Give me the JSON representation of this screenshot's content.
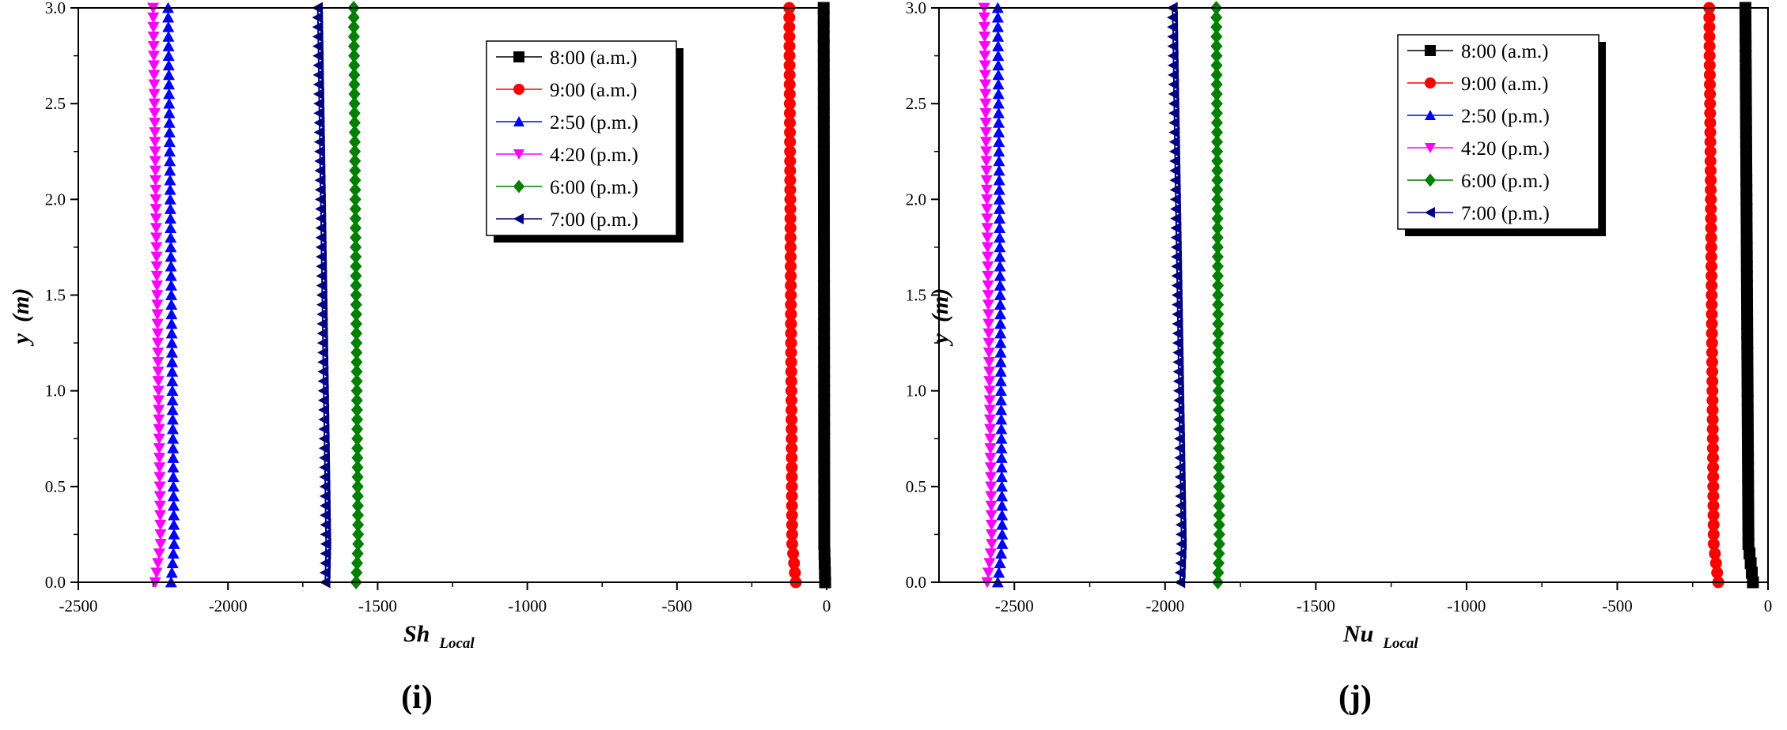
{
  "figure": {
    "panels": [
      {
        "panel_label": "(i)",
        "x_title_main": "Sh",
        "x_title_sub": "Local",
        "y_title_main": "y",
        "y_title_unit": "(m)"
      },
      {
        "panel_label": "(j)",
        "x_title_main": "Nu",
        "x_title_sub": "Local",
        "y_title_main": "y",
        "y_title_unit": "(m)"
      }
    ]
  },
  "chart_data": [
    {
      "type": "line",
      "title": "(i)",
      "xlabel": "Sh Local",
      "ylabel": "y (m)",
      "xlim": [
        -2500,
        0
      ],
      "ylim": [
        0,
        3.0
      ],
      "x_ticks": [
        -2500,
        -2000,
        -1500,
        -1000,
        -500,
        0
      ],
      "x_tick_labels": [
        "-2500",
        "-2000",
        "-1500",
        "-1000",
        "-500",
        "0"
      ],
      "y_ticks": [
        0,
        0.5,
        1.0,
        1.5,
        2.0,
        2.5,
        3.0
      ],
      "y_tick_labels": [
        "0.0",
        "0.5",
        "1.0",
        "1.5",
        "2.0",
        "2.5",
        "3.0"
      ],
      "legend_position": "top-right",
      "series": [
        {
          "name": "8:00 (a.m.)",
          "color": "#000000",
          "marker": "square",
          "x_at_bottom": -5,
          "x_near_bottom": -8,
          "x_at_top": -10
        },
        {
          "name": "9:00 (a.m.)",
          "color": "#ff0000",
          "marker": "circle",
          "x_at_bottom": -103,
          "x_near_bottom": -115,
          "x_at_top": -125
        },
        {
          "name": "2:50 (p.m.)",
          "color": "#0000ff",
          "marker": "triangle-up",
          "x_at_bottom": -2190,
          "x_near_bottom": -2180,
          "x_at_top": -2200
        },
        {
          "name": "4:20 (p.m.)",
          "color": "#ff00ff",
          "marker": "triangle-down",
          "x_at_bottom": -2243,
          "x_near_bottom": -2225,
          "x_at_top": -2250
        },
        {
          "name": "6:00 (p.m.)",
          "color": "#008000",
          "marker": "diamond",
          "x_at_bottom": -1572,
          "x_near_bottom": -1565,
          "x_at_top": -1580
        },
        {
          "name": "7:00 (p.m.)",
          "color": "#000080",
          "marker": "triangle-left",
          "x_at_bottom": -1675,
          "x_near_bottom": -1672,
          "x_at_top": -1700
        }
      ]
    },
    {
      "type": "line",
      "title": "(j)",
      "xlabel": "Nu Local",
      "ylabel": "y (m)",
      "xlim": [
        -2750,
        0
      ],
      "ylim": [
        0,
        3.0
      ],
      "x_ticks": [
        -2500,
        -2000,
        -1500,
        -1000,
        -500,
        0
      ],
      "x_tick_labels": [
        "-2500",
        "-2000",
        "-1500",
        "-1000",
        "-500",
        "0"
      ],
      "y_ticks": [
        0,
        0.5,
        1.0,
        1.5,
        2.0,
        2.5,
        3.0
      ],
      "y_tick_labels": [
        "0.0",
        "0.5",
        "1.0",
        "1.5",
        "2.0",
        "2.5",
        "3.0"
      ],
      "legend_position": "top-right",
      "series": [
        {
          "name": "8:00 (a.m.)",
          "color": "#000000",
          "marker": "square",
          "x_at_bottom": -50,
          "x_near_bottom": -65,
          "x_at_top": -75
        },
        {
          "name": "9:00 (a.m.)",
          "color": "#ff0000",
          "marker": "circle",
          "x_at_bottom": -165,
          "x_near_bottom": -180,
          "x_at_top": -195
        },
        {
          "name": "2:50 (p.m.)",
          "color": "#0000ff",
          "marker": "triangle-up",
          "x_at_bottom": -2555,
          "x_near_bottom": -2540,
          "x_at_top": -2555
        },
        {
          "name": "4:20 (p.m.)",
          "color": "#ff00ff",
          "marker": "triangle-down",
          "x_at_bottom": -2590,
          "x_near_bottom": -2575,
          "x_at_top": -2600
        },
        {
          "name": "6:00 (p.m.)",
          "color": "#008000",
          "marker": "diamond",
          "x_at_bottom": -1825,
          "x_near_bottom": -1820,
          "x_at_top": -1830
        },
        {
          "name": "7:00 (p.m.)",
          "color": "#000080",
          "marker": "triangle-left",
          "x_at_bottom": -1950,
          "x_near_bottom": -1945,
          "x_at_top": -1975
        }
      ]
    }
  ]
}
